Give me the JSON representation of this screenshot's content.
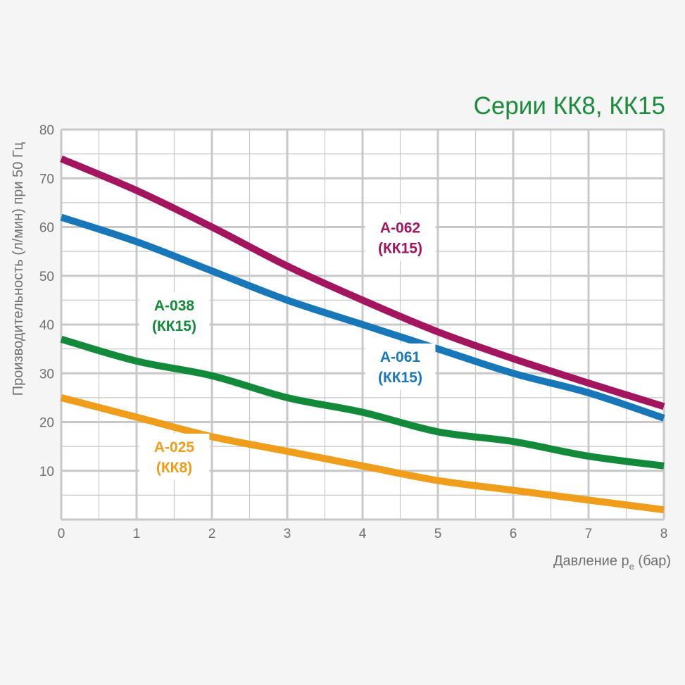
{
  "chart_data": {
    "type": "line",
    "title": "Серии КК8, КК15",
    "xlabel_main": "Давление p",
    "xlabel_sub": "e",
    "xlabel_unit": " (бар)",
    "ylabel": "Производительность (л/мин) при 50 Гц",
    "xlim": [
      0,
      8
    ],
    "ylim": [
      0,
      80
    ],
    "x_ticks": [
      "0",
      "1",
      "2",
      "3",
      "4",
      "5",
      "6",
      "7",
      "8"
    ],
    "y_ticks": [
      "10",
      "20",
      "30",
      "40",
      "50",
      "60",
      "70",
      "80"
    ],
    "grid": true,
    "series": [
      {
        "name": "A-062",
        "sub": "(КК15)",
        "color": "#a3155e",
        "x": [
          0,
          1,
          2,
          3,
          4,
          5,
          6,
          7,
          8
        ],
        "y": [
          74,
          67.5,
          60,
          52,
          45,
          38.5,
          33,
          28,
          23.2
        ]
      },
      {
        "name": "A-061",
        "sub": "(КК15)",
        "color": "#1877b8",
        "x": [
          0,
          1,
          2,
          3,
          4,
          5,
          6,
          7,
          8
        ],
        "y": [
          62,
          57,
          51,
          45,
          40,
          35,
          30,
          26,
          20.8
        ]
      },
      {
        "name": "A-038",
        "sub": "(КК15)",
        "color": "#138a3a",
        "x": [
          0,
          1,
          2,
          3,
          4,
          5,
          6,
          7,
          8
        ],
        "y": [
          37,
          32.5,
          29.5,
          25,
          22,
          18,
          16,
          13,
          11
        ]
      },
      {
        "name": "A-025",
        "sub": "(КК8)",
        "color": "#ef9d1b",
        "x": [
          0,
          1,
          2,
          3,
          4,
          5,
          6,
          7,
          8
        ],
        "y": [
          25,
          21,
          17,
          14,
          11,
          8,
          6,
          4,
          2
        ]
      }
    ]
  }
}
